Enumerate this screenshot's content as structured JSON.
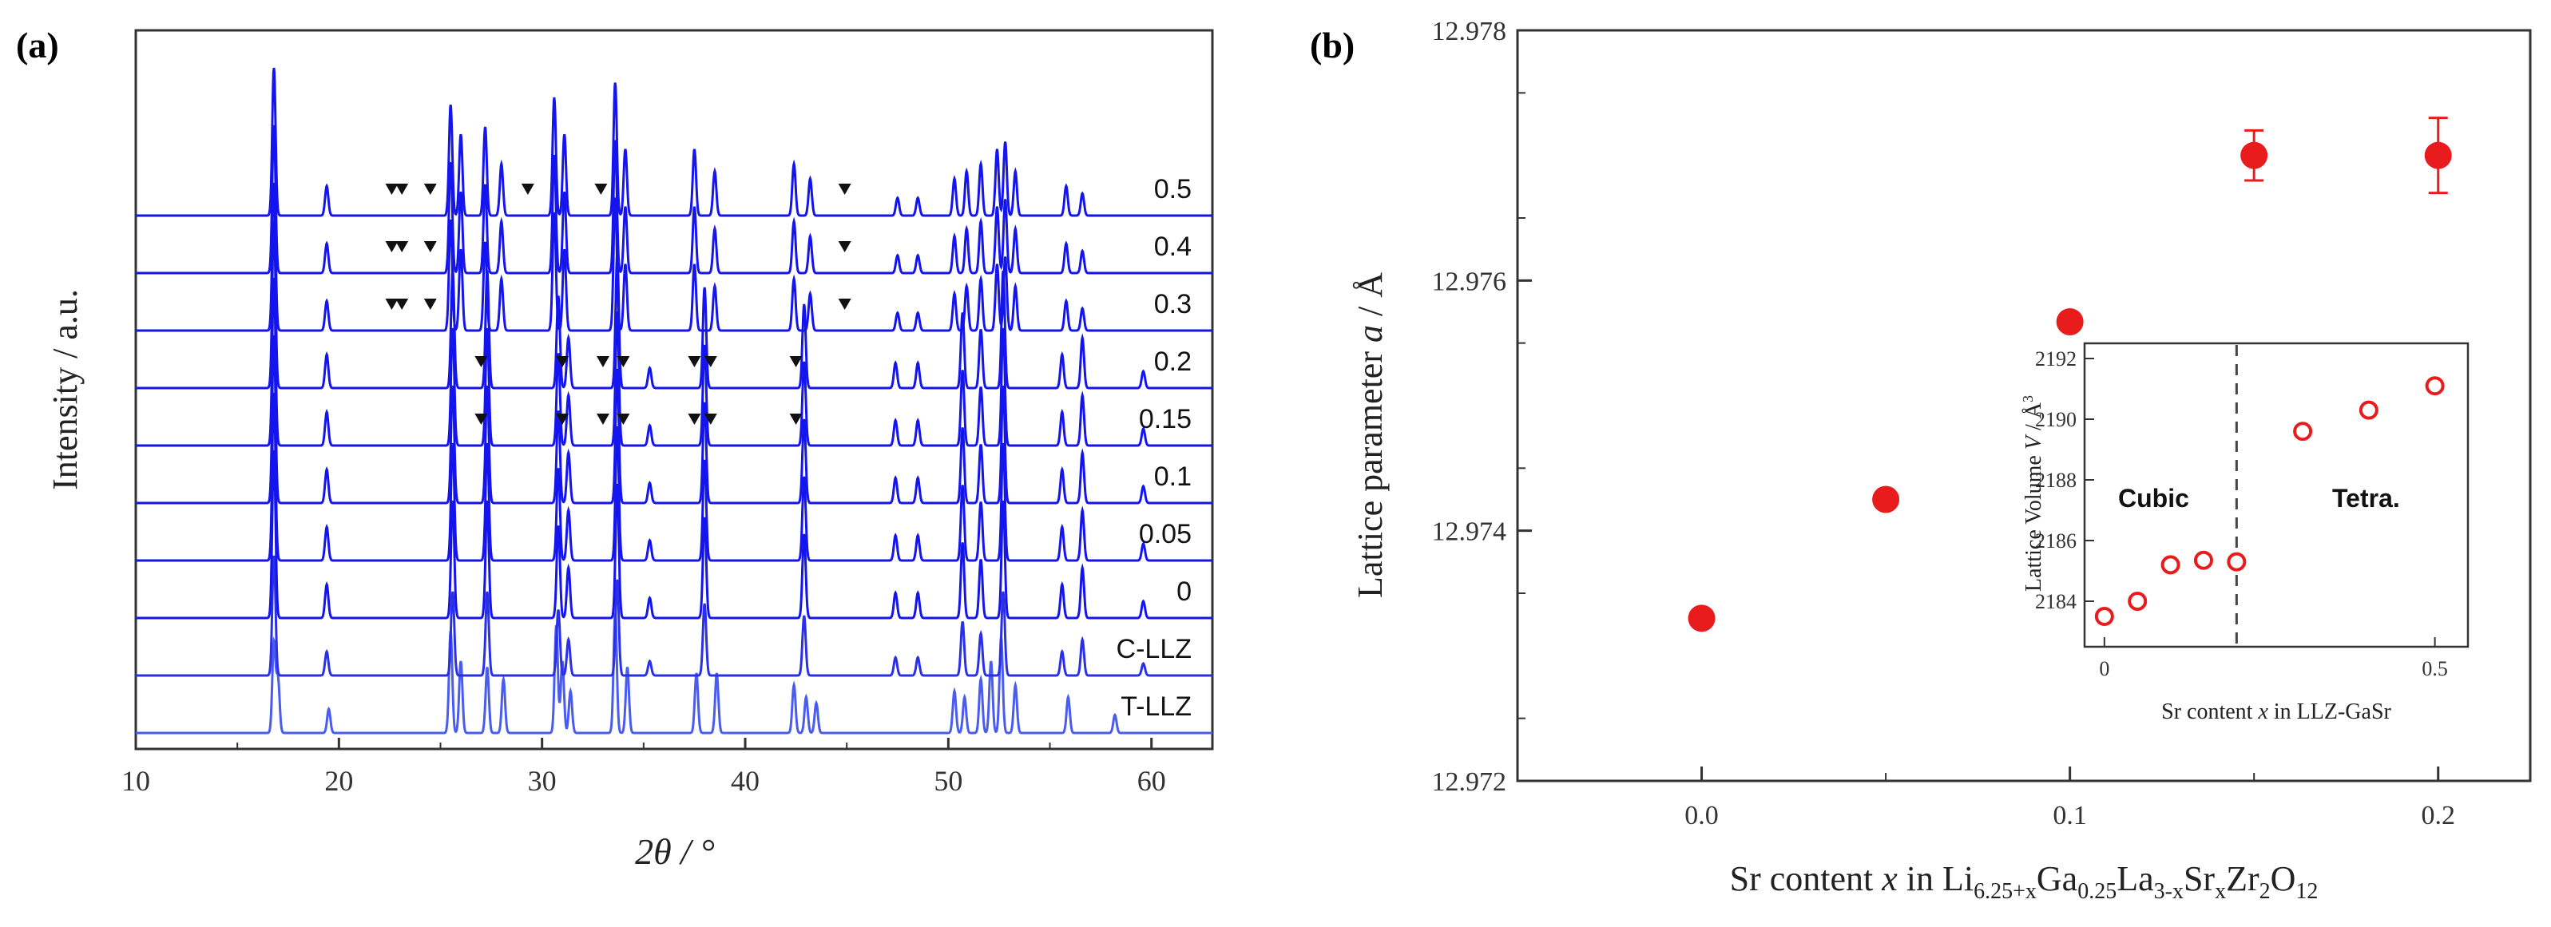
{
  "chart_data": [
    {
      "panel": "(a)",
      "type": "line",
      "title": "",
      "xlabel": "2θ / °",
      "ylabel": "Intensity / a.u.",
      "xlim": [
        10,
        63
      ],
      "xticks": [
        10,
        20,
        30,
        40,
        50,
        60
      ],
      "description_traces": "XRD patterns, stacked, bottom to top",
      "traces": [
        {
          "label": "T-LLZ",
          "color": "#4a5cf0",
          "peaks": [
            [
              16.8,
              0.75
            ],
            [
              17.0,
              0.45
            ],
            [
              19.5,
              0.2
            ],
            [
              25.5,
              0.85
            ],
            [
              26.0,
              0.6
            ],
            [
              27.3,
              0.55
            ],
            [
              28.1,
              0.45
            ],
            [
              30.7,
              0.9
            ],
            [
              31.0,
              0.6
            ],
            [
              31.4,
              0.35
            ],
            [
              33.6,
              1.0
            ],
            [
              34.2,
              0.55
            ],
            [
              37.6,
              0.5
            ],
            [
              38.6,
              0.5
            ],
            [
              42.4,
              0.4
            ],
            [
              43.0,
              0.3
            ],
            [
              43.5,
              0.25
            ],
            [
              50.3,
              0.35
            ],
            [
              50.8,
              0.3
            ],
            [
              51.6,
              0.45
            ],
            [
              52.1,
              0.6
            ],
            [
              52.6,
              0.8
            ],
            [
              53.3,
              0.4
            ],
            [
              55.9,
              0.3
            ],
            [
              58.2,
              0.15
            ]
          ],
          "marks": []
        },
        {
          "label": "C-LLZ",
          "color": "#2a30e8",
          "peaks": [
            [
              16.8,
              1.0
            ],
            [
              19.4,
              0.2
            ],
            [
              25.6,
              0.7
            ],
            [
              27.3,
              0.7
            ],
            [
              30.8,
              0.55
            ],
            [
              31.3,
              0.3
            ],
            [
              33.7,
              0.8
            ],
            [
              35.3,
              0.12
            ],
            [
              38.0,
              0.6
            ],
            [
              42.9,
              0.5
            ],
            [
              47.4,
              0.15
            ],
            [
              48.5,
              0.15
            ],
            [
              50.7,
              0.45
            ],
            [
              51.6,
              0.35
            ],
            [
              52.7,
              0.7
            ],
            [
              55.6,
              0.2
            ],
            [
              56.6,
              0.3
            ],
            [
              59.6,
              0.1
            ]
          ],
          "marks": []
        },
        {
          "label": "0",
          "color": "#1414ee",
          "peaks": [
            [
              16.8,
              1.0
            ],
            [
              19.4,
              0.2
            ],
            [
              25.6,
              0.7
            ],
            [
              27.3,
              0.7
            ],
            [
              30.8,
              0.55
            ],
            [
              31.3,
              0.3
            ],
            [
              33.7,
              0.8
            ],
            [
              35.3,
              0.12
            ],
            [
              38.0,
              0.6
            ],
            [
              42.9,
              0.5
            ],
            [
              47.4,
              0.15
            ],
            [
              48.5,
              0.15
            ],
            [
              50.7,
              0.45
            ],
            [
              51.6,
              0.35
            ],
            [
              52.7,
              0.7
            ],
            [
              55.6,
              0.2
            ],
            [
              56.6,
              0.3
            ],
            [
              59.6,
              0.1
            ]
          ],
          "marks": []
        },
        {
          "label": "0.05",
          "color": "#1414ee",
          "peaks": [
            [
              16.8,
              1.0
            ],
            [
              19.4,
              0.2
            ],
            [
              25.6,
              0.7
            ],
            [
              27.3,
              0.7
            ],
            [
              30.8,
              0.55
            ],
            [
              31.3,
              0.3
            ],
            [
              33.7,
              0.8
            ],
            [
              35.3,
              0.12
            ],
            [
              38.0,
              0.6
            ],
            [
              42.9,
              0.5
            ],
            [
              47.4,
              0.15
            ],
            [
              48.5,
              0.15
            ],
            [
              50.7,
              0.45
            ],
            [
              51.6,
              0.35
            ],
            [
              52.7,
              0.7
            ],
            [
              55.6,
              0.2
            ],
            [
              56.6,
              0.3
            ],
            [
              59.6,
              0.1
            ]
          ],
          "marks": []
        },
        {
          "label": "0.1",
          "color": "#1414ee",
          "peaks": [
            [
              16.8,
              1.0
            ],
            [
              19.4,
              0.2
            ],
            [
              25.6,
              0.7
            ],
            [
              27.3,
              0.7
            ],
            [
              30.8,
              0.55
            ],
            [
              31.3,
              0.3
            ],
            [
              33.7,
              0.8
            ],
            [
              35.3,
              0.12
            ],
            [
              38.0,
              0.6
            ],
            [
              42.9,
              0.5
            ],
            [
              47.4,
              0.15
            ],
            [
              48.5,
              0.15
            ],
            [
              50.7,
              0.45
            ],
            [
              51.6,
              0.35
            ],
            [
              52.7,
              0.7
            ],
            [
              55.6,
              0.2
            ],
            [
              56.6,
              0.3
            ],
            [
              59.6,
              0.1
            ]
          ],
          "marks": []
        },
        {
          "label": "0.15",
          "color": "#1414ee",
          "peaks": [
            [
              16.8,
              1.0
            ],
            [
              19.4,
              0.2
            ],
            [
              25.6,
              0.7
            ],
            [
              27.3,
              0.7
            ],
            [
              30.8,
              0.55
            ],
            [
              31.3,
              0.3
            ],
            [
              33.7,
              0.8
            ],
            [
              35.3,
              0.12
            ],
            [
              38.0,
              0.6
            ],
            [
              42.9,
              0.5
            ],
            [
              47.4,
              0.15
            ],
            [
              48.5,
              0.15
            ],
            [
              50.7,
              0.45
            ],
            [
              51.6,
              0.35
            ],
            [
              52.7,
              0.7
            ],
            [
              55.6,
              0.2
            ],
            [
              56.6,
              0.3
            ],
            [
              59.6,
              0.1
            ]
          ],
          "marks": [
            27.0,
            31.0,
            33.0,
            34.0,
            37.5,
            38.3,
            42.5
          ]
        },
        {
          "label": "0.2",
          "color": "#1414ee",
          "peaks": [
            [
              16.8,
              1.0
            ],
            [
              19.4,
              0.2
            ],
            [
              25.6,
              0.7
            ],
            [
              27.3,
              0.7
            ],
            [
              30.8,
              0.55
            ],
            [
              31.3,
              0.3
            ],
            [
              33.7,
              0.8
            ],
            [
              35.3,
              0.12
            ],
            [
              38.0,
              0.6
            ],
            [
              42.9,
              0.5
            ],
            [
              47.4,
              0.15
            ],
            [
              48.5,
              0.15
            ],
            [
              50.7,
              0.45
            ],
            [
              51.6,
              0.35
            ],
            [
              52.7,
              0.7
            ],
            [
              55.6,
              0.2
            ],
            [
              56.6,
              0.3
            ],
            [
              59.6,
              0.1
            ]
          ],
          "marks": [
            27.0,
            31.0,
            33.0,
            34.0,
            37.5,
            38.3,
            42.5
          ]
        },
        {
          "label": "0.3",
          "color": "#1414ee",
          "peaks": [
            [
              16.8,
              1.0
            ],
            [
              19.4,
              0.2
            ],
            [
              25.5,
              0.75
            ],
            [
              26.0,
              0.55
            ],
            [
              27.2,
              0.6
            ],
            [
              28.0,
              0.35
            ],
            [
              30.6,
              0.8
            ],
            [
              31.1,
              0.55
            ],
            [
              33.6,
              0.9
            ],
            [
              34.1,
              0.45
            ],
            [
              37.5,
              0.45
            ],
            [
              38.5,
              0.3
            ],
            [
              42.4,
              0.35
            ],
            [
              43.2,
              0.25
            ],
            [
              47.5,
              0.12
            ],
            [
              48.5,
              0.12
            ],
            [
              50.3,
              0.25
            ],
            [
              50.9,
              0.3
            ],
            [
              51.6,
              0.35
            ],
            [
              52.4,
              0.45
            ],
            [
              52.8,
              0.5
            ],
            [
              53.3,
              0.3
            ],
            [
              55.8,
              0.2
            ],
            [
              56.6,
              0.15
            ]
          ],
          "marks": [
            22.6,
            23.1,
            24.5,
            44.9
          ]
        },
        {
          "label": "0.4",
          "color": "#1414ee",
          "peaks": [
            [
              16.8,
              1.0
            ],
            [
              19.4,
              0.2
            ],
            [
              25.5,
              0.75
            ],
            [
              26.0,
              0.55
            ],
            [
              27.2,
              0.6
            ],
            [
              28.0,
              0.35
            ],
            [
              30.6,
              0.8
            ],
            [
              31.1,
              0.55
            ],
            [
              33.6,
              0.9
            ],
            [
              34.1,
              0.45
            ],
            [
              37.5,
              0.45
            ],
            [
              38.5,
              0.3
            ],
            [
              42.4,
              0.35
            ],
            [
              43.2,
              0.25
            ],
            [
              47.5,
              0.12
            ],
            [
              48.5,
              0.12
            ],
            [
              50.3,
              0.25
            ],
            [
              50.9,
              0.3
            ],
            [
              51.6,
              0.35
            ],
            [
              52.4,
              0.45
            ],
            [
              52.8,
              0.5
            ],
            [
              53.3,
              0.3
            ],
            [
              55.8,
              0.2
            ],
            [
              56.6,
              0.15
            ]
          ],
          "marks": [
            22.6,
            23.1,
            24.5,
            44.9
          ]
        },
        {
          "label": "0.5",
          "color": "#1414ee",
          "peaks": [
            [
              16.8,
              1.0
            ],
            [
              19.4,
              0.2
            ],
            [
              25.5,
              0.75
            ],
            [
              26.0,
              0.55
            ],
            [
              27.2,
              0.6
            ],
            [
              28.0,
              0.35
            ],
            [
              30.6,
              0.8
            ],
            [
              31.1,
              0.55
            ],
            [
              33.6,
              0.9
            ],
            [
              34.1,
              0.45
            ],
            [
              37.5,
              0.45
            ],
            [
              38.5,
              0.3
            ],
            [
              42.4,
              0.35
            ],
            [
              43.2,
              0.25
            ],
            [
              47.5,
              0.12
            ],
            [
              48.5,
              0.12
            ],
            [
              50.3,
              0.25
            ],
            [
              50.9,
              0.3
            ],
            [
              51.6,
              0.35
            ],
            [
              52.4,
              0.45
            ],
            [
              52.8,
              0.5
            ],
            [
              53.3,
              0.3
            ],
            [
              55.8,
              0.2
            ],
            [
              56.6,
              0.15
            ]
          ],
          "marks": [
            22.6,
            23.1,
            24.5,
            29.3,
            32.9,
            44.9
          ]
        }
      ]
    },
    {
      "panel": "(b)",
      "type": "scatter",
      "title": "",
      "xlabel_prefix": "Sr content ",
      "xlabel_var": "x",
      "xlabel_mid": " in Li",
      "xlabel_sub1": "6.25+x",
      "xlabel_ga": "Ga",
      "xlabel_sub2": "0.25",
      "xlabel_la": "La",
      "xlabel_sub3": "3-x",
      "xlabel_sr": "Sr",
      "xlabel_sub4": "x",
      "xlabel_zr": "Zr",
      "xlabel_sub5": "2",
      "xlabel_o": "O",
      "xlabel_sub6": "12",
      "ylabel_prefix": "Lattice parameter ",
      "ylabel_var": "a",
      "ylabel_suffix": " / Å",
      "xlim": [
        -0.05,
        0.225
      ],
      "ylim": [
        12.972,
        12.978
      ],
      "xticks": [
        "0.0",
        "0.1",
        "0.2"
      ],
      "yticks": [
        "12.972",
        "12.974",
        "12.976",
        "12.978"
      ],
      "color": "#e81c1c",
      "x": [
        0.0,
        0.05,
        0.1,
        0.15,
        0.2
      ],
      "y": [
        12.9733,
        12.97425,
        12.97567,
        12.977,
        12.977
      ],
      "yerr": [
        0,
        0,
        0,
        0.0002,
        0.0003
      ]
    },
    {
      "panel": "(b) inset",
      "type": "scatter",
      "xlabel_prefix": "Sr content ",
      "xlabel_var": "x",
      "xlabel_suffix": " in LLZ-GaSr",
      "ylabel_prefix": "Lattice Volume ",
      "ylabel_var": "V",
      "ylabel_suffix": " / Å",
      "ylabel_sup": "3",
      "xlim": [
        -0.03,
        0.55
      ],
      "ylim": [
        2182.5,
        2192.5
      ],
      "xticks": [
        "0",
        "0.5"
      ],
      "yticks": [
        "2184",
        "2186",
        "2188",
        "2190",
        "2192"
      ],
      "phase_boundary_x": 0.2,
      "phase_labels": [
        "Cubic",
        "Tetra."
      ],
      "x": [
        0.0,
        0.05,
        0.1,
        0.15,
        0.2,
        0.3,
        0.4,
        0.5
      ],
      "y": [
        2183.5,
        2184.0,
        2185.2,
        2185.35,
        2185.3,
        2189.6,
        2190.3,
        2191.1
      ]
    }
  ]
}
